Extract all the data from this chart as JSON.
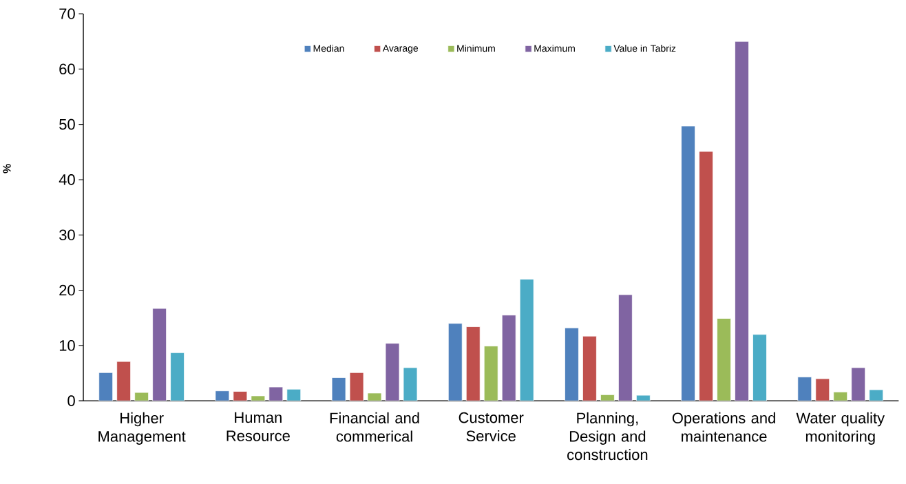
{
  "chart_data": {
    "type": "bar",
    "ylabel": "%",
    "categories": [
      "Higher Management",
      "Human Resource",
      "Financial and commerical",
      "Customer Service",
      "Planning, Design and construction",
      "Operations and maintenance",
      "Water quality monitoring"
    ],
    "series": [
      {
        "name": "Median",
        "color": "#4f81bd",
        "values": [
          5.1,
          1.8,
          4.2,
          14.0,
          13.2,
          49.7,
          4.3
        ]
      },
      {
        "name": "Avarage",
        "color": "#c0504d",
        "values": [
          7.1,
          1.7,
          5.1,
          13.4,
          11.7,
          45.1,
          4.0
        ]
      },
      {
        "name": "Minimum",
        "color": "#9bbb59",
        "values": [
          1.5,
          0.9,
          1.4,
          9.9,
          1.1,
          14.9,
          1.6
        ]
      },
      {
        "name": "Maximum",
        "color": "#8064a2",
        "values": [
          16.7,
          2.5,
          10.4,
          15.5,
          19.2,
          65.0,
          6.0
        ]
      },
      {
        "name": "Value  in Tabriz",
        "color": "#4bacc6",
        "values": [
          8.7,
          2.1,
          6.0,
          22.0,
          1.0,
          12.0,
          2.0
        ]
      }
    ],
    "ylim": [
      0,
      70
    ],
    "yticks": [
      0,
      10,
      20,
      30,
      40,
      50,
      60,
      70
    ],
    "legend": "top",
    "grid": false
  }
}
